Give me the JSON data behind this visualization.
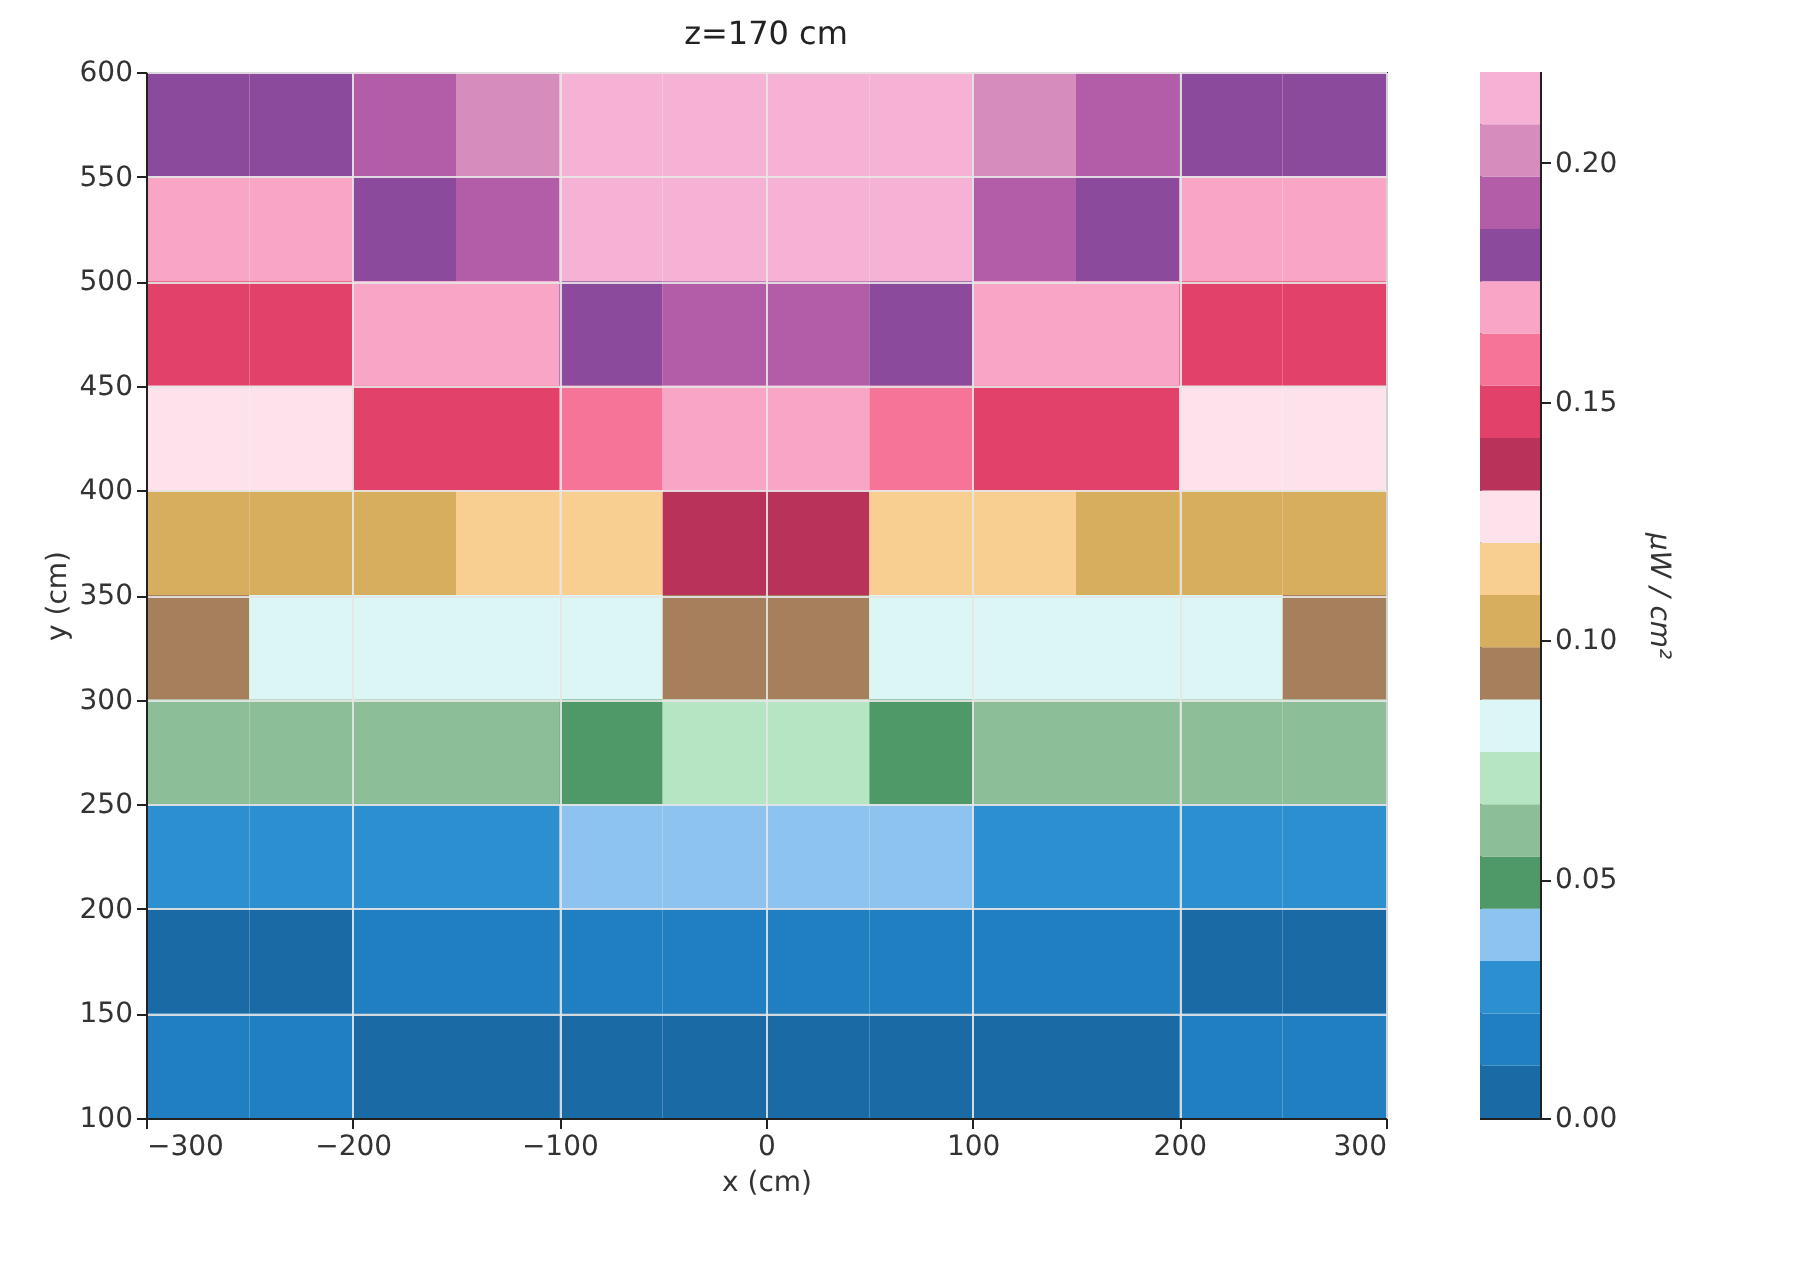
{
  "chart_data": {
    "type": "heatmap",
    "title": "z=170 cm",
    "xlabel": "x (cm)",
    "ylabel": "y (cm)",
    "clabel": "μW / cm²",
    "x": [
      -275,
      -225,
      -175,
      -125,
      -75,
      -25,
      25,
      75,
      125,
      175,
      225,
      275
    ],
    "y": [
      575,
      525,
      475,
      425,
      375,
      325,
      275,
      225,
      175,
      125
    ],
    "cells": [
      [
        0.181,
        0.181,
        0.192,
        0.203,
        0.214,
        0.214,
        0.214,
        0.214,
        0.203,
        0.192,
        0.181,
        0.181
      ],
      [
        0.17,
        0.17,
        0.181,
        0.192,
        0.214,
        0.214,
        0.214,
        0.214,
        0.192,
        0.181,
        0.17,
        0.17
      ],
      [
        0.148,
        0.148,
        0.17,
        0.17,
        0.181,
        0.192,
        0.192,
        0.181,
        0.17,
        0.17,
        0.148,
        0.148
      ],
      [
        0.126,
        0.126,
        0.148,
        0.148,
        0.159,
        0.17,
        0.17,
        0.159,
        0.148,
        0.148,
        0.126,
        0.126
      ],
      [
        0.104,
        0.104,
        0.104,
        0.115,
        0.115,
        0.137,
        0.137,
        0.115,
        0.115,
        0.104,
        0.104,
        0.104
      ],
      [
        0.093,
        0.082,
        0.082,
        0.082,
        0.082,
        0.093,
        0.093,
        0.082,
        0.082,
        0.082,
        0.082,
        0.093
      ],
      [
        0.06,
        0.06,
        0.06,
        0.06,
        0.049,
        0.071,
        0.071,
        0.049,
        0.06,
        0.06,
        0.06,
        0.06
      ],
      [
        0.027,
        0.027,
        0.027,
        0.027,
        0.038,
        0.038,
        0.038,
        0.038,
        0.027,
        0.027,
        0.027,
        0.027
      ],
      [
        0.005,
        0.005,
        0.016,
        0.016,
        0.016,
        0.016,
        0.016,
        0.016,
        0.016,
        0.016,
        0.005,
        0.005
      ],
      [
        0.016,
        0.016,
        0.005,
        0.005,
        0.005,
        0.005,
        0.005,
        0.005,
        0.005,
        0.005,
        0.016,
        0.016
      ]
    ],
    "colors": [
      "#1a6aa5",
      "#1f7fc0",
      "#2b8fd0",
      "#8cc3ef",
      "#4f9868",
      "#8cbf98",
      "#b6e5c4",
      "#dbf6f4",
      "#a67f5c",
      "#d6ae5e",
      "#f8cf90",
      "#fde2ec",
      "#b8325a",
      "#e2426a",
      "#f57498",
      "#f9a6c6",
      "#8c4a9c",
      "#b35ca8",
      "#d68cbc",
      "#f6b2d4"
    ],
    "clim": [
      0,
      0.219
    ],
    "cticks": [
      {
        "value": 0,
        "label": "0.00"
      },
      {
        "value": 0.05,
        "label": "0.05"
      },
      {
        "value": 0.1,
        "label": "0.10"
      },
      {
        "value": 0.15,
        "label": "0.15"
      },
      {
        "value": 0.2,
        "label": "0.20"
      }
    ],
    "xlim": [
      -300,
      300
    ],
    "xticks": [
      -300,
      -200,
      -100,
      0,
      100,
      200,
      300
    ],
    "ylim": [
      100,
      600
    ],
    "yticks": [
      100,
      150,
      200,
      250,
      300,
      350,
      400,
      450,
      500,
      550,
      600
    ],
    "grid": true
  }
}
